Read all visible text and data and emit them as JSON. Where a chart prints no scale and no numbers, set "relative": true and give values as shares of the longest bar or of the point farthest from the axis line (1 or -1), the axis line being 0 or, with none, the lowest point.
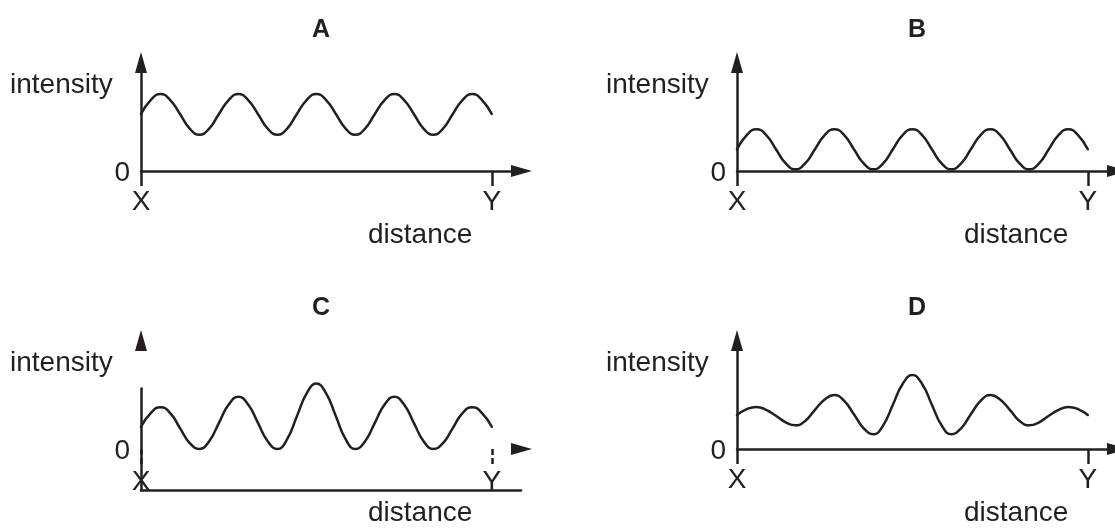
{
  "chart_data": [
    {
      "type": "line",
      "title": "A",
      "xlabel": "distance",
      "ylabel": "intensity",
      "relative": true,
      "color": "#231f20",
      "tick_labels": "x",
      "annotations": [
        "0"
      ],
      "categories": [
        "X",
        null,
        null,
        null,
        null,
        null,
        null,
        null,
        null,
        null,
        null,
        null,
        null,
        null,
        null,
        null,
        null,
        null,
        null,
        null,
        null,
        null,
        null,
        null,
        null,
        null,
        null,
        null,
        null,
        null,
        null,
        null,
        null,
        null,
        null,
        null,
        "Y"
      ],
      "values": [
        0.74,
        0.92,
        1,
        0.92,
        0.74,
        0.55,
        0.47,
        0.55,
        0.74,
        0.92,
        1,
        0.92,
        0.74,
        0.55,
        0.47,
        0.55,
        0.74,
        0.92,
        1,
        0.92,
        0.74,
        0.55,
        0.47,
        0.55,
        0.74,
        0.92,
        1,
        0.92,
        0.74,
        0.55,
        0.47,
        0.55,
        0.74,
        0.92,
        1,
        0.92,
        0.74
      ]
    },
    {
      "type": "line",
      "title": "B",
      "xlabel": "distance",
      "ylabel": "intensity",
      "relative": true,
      "color": "#231f20",
      "tick_labels": "x",
      "annotations": [
        "0"
      ],
      "categories": [
        "X",
        null,
        null,
        null,
        null,
        null,
        null,
        null,
        null,
        null,
        null,
        null,
        null,
        null,
        null,
        null,
        null,
        null,
        null,
        null,
        null,
        null,
        null,
        null,
        null,
        null,
        null,
        null,
        null,
        null,
        null,
        null,
        null,
        null,
        null,
        null,
        "Y"
      ],
      "values": [
        0.52,
        0.86,
        1,
        0.86,
        0.52,
        0.18,
        0.04,
        0.18,
        0.52,
        0.86,
        1,
        0.86,
        0.52,
        0.18,
        0.04,
        0.18,
        0.52,
        0.86,
        1,
        0.86,
        0.52,
        0.18,
        0.04,
        0.18,
        0.52,
        0.86,
        1,
        0.86,
        0.52,
        0.18,
        0.04,
        0.18,
        0.52,
        0.86,
        1,
        0.86,
        0.52
      ]
    },
    {
      "type": "line",
      "title": "C",
      "xlabel": "distance",
      "ylabel": "intensity",
      "relative": true,
      "color": "#231f20",
      "tick_labels": "x",
      "annotations": [
        "0"
      ],
      "categories": [
        "X",
        null,
        null,
        null,
        null,
        null,
        null,
        null,
        null,
        null,
        null,
        null,
        null,
        null,
        null,
        null,
        null,
        null,
        null,
        null,
        null,
        null,
        null,
        null,
        null,
        null,
        null,
        null,
        null,
        null,
        null,
        null,
        null,
        null,
        null,
        null,
        "Y"
      ],
      "values": [
        0.34,
        0.55,
        0.64,
        0.55,
        0.32,
        0.09,
        0,
        0.12,
        0.4,
        0.68,
        0.8,
        0.68,
        0.4,
        0.12,
        0,
        0.15,
        0.5,
        0.85,
        1,
        0.85,
        0.5,
        0.15,
        0,
        0.12,
        0.4,
        0.68,
        0.8,
        0.68,
        0.4,
        0.12,
        0,
        0.09,
        0.32,
        0.55,
        0.64,
        0.55,
        0.34
      ]
    },
    {
      "type": "line",
      "title": "D",
      "xlabel": "distance",
      "ylabel": "intensity",
      "relative": true,
      "color": "#231f20",
      "tick_labels": "x",
      "annotations": [
        "0"
      ],
      "categories": [
        "X",
        null,
        null,
        null,
        null,
        null,
        null,
        null,
        null,
        null,
        null,
        null,
        null,
        null,
        null,
        null,
        null,
        null,
        null,
        null,
        null,
        null,
        null,
        null,
        null,
        null,
        null,
        null,
        null,
        null,
        null,
        null,
        null,
        null,
        null,
        null,
        "Y"
      ],
      "values": [
        0.46,
        0.54,
        0.57,
        0.53,
        0.45,
        0.36,
        0.32,
        0.38,
        0.53,
        0.67,
        0.73,
        0.65,
        0.47,
        0.28,
        0.2,
        0.32,
        0.6,
        0.88,
        1,
        0.88,
        0.6,
        0.32,
        0.2,
        0.28,
        0.47,
        0.65,
        0.73,
        0.67,
        0.53,
        0.38,
        0.32,
        0.36,
        0.45,
        0.53,
        0.57,
        0.54,
        0.46
      ]
    }
  ]
}
